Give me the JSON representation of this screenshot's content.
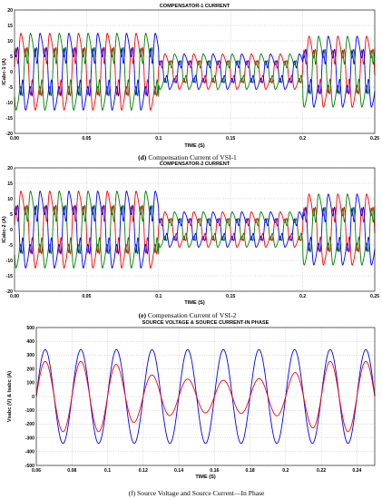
{
  "chart_data": [
    {
      "type": "line",
      "title": "COMPENSATOR-1 CURRENT",
      "xlabel": "TIME (S)",
      "ylabel": "ICabc-1 (A)",
      "xlim": [
        0.0,
        0.25
      ],
      "ylim": [
        -20,
        20
      ],
      "xticks": [
        "0.05",
        "0.1",
        "0.15",
        "0.2",
        "0.25"
      ],
      "yticks": [
        "-20",
        "-15",
        "-10",
        "-5",
        "0",
        "5",
        "10",
        "15",
        "20"
      ],
      "grid": true,
      "series": [
        {
          "color": "#ff0000",
          "phase_deg": 0
        },
        {
          "color": "#008000",
          "phase_deg": -120
        },
        {
          "color": "#0000ff",
          "phase_deg": 120
        }
      ],
      "segments": [
        {
          "x": [
            0.0,
            0.1
          ],
          "peak_amplitude": 13
        },
        {
          "x": [
            0.1,
            0.2
          ],
          "peak_amplitude": 6
        },
        {
          "x": [
            0.2,
            0.25
          ],
          "peak_amplitude": 12
        }
      ],
      "caption_letter": "(d)",
      "caption_text": " Compensation Current of VSI-1"
    },
    {
      "type": "line",
      "title": "COMPENSATOR-2 CURRENT",
      "xlabel": "TIME (S)",
      "ylabel": "ICabc-2 (A)",
      "xlim": [
        0.0,
        0.25
      ],
      "ylim": [
        -20,
        20
      ],
      "xticks": [
        "0.05",
        "0.1",
        "0.15",
        "0.2",
        "0.25"
      ],
      "yticks": [
        "-20",
        "-15",
        "-10",
        "-5",
        "0",
        "5",
        "10",
        "15",
        "20"
      ],
      "grid": true,
      "series": [
        {
          "color": "#ff0000",
          "phase_deg": 0
        },
        {
          "color": "#008000",
          "phase_deg": -120
        },
        {
          "color": "#0000ff",
          "phase_deg": 120
        }
      ],
      "segments": [
        {
          "x": [
            0.0,
            0.1
          ],
          "peak_amplitude": 13
        },
        {
          "x": [
            0.1,
            0.2
          ],
          "peak_amplitude": 6
        },
        {
          "x": [
            0.2,
            0.25
          ],
          "peak_amplitude": 12
        }
      ],
      "caption_letter": "(e)",
      "caption_text": " Compensation Current of VSI-2"
    },
    {
      "type": "line",
      "title": "SOURCE VOLTAGE & SOURCE CURRENT-IN PHASE",
      "xlabel": "TIME (S)",
      "ylabel": "Vsabc (V) & Isabc (A)",
      "xlim": [
        0.06,
        0.25
      ],
      "ylim": [
        -500,
        500
      ],
      "xticks": [
        "0.06",
        "0.08",
        "0.1",
        "0.12",
        "0.14",
        "0.16",
        "0.18",
        "0.2",
        "0.22",
        "0.24"
      ],
      "yticks": [
        "-500",
        "-400",
        "-300",
        "-200",
        "-100",
        "0",
        "100",
        "200",
        "300",
        "400",
        "500"
      ],
      "grid": true,
      "frequency_hz": 50,
      "series": [
        {
          "color": "#0000ff",
          "peak_amplitude": 340
        },
        {
          "color": "#ff0000",
          "peak_amplitude_points": {
            "x": [
              0.06,
              0.1,
              0.12,
              0.14,
              0.16,
              0.18,
              0.2,
              0.22,
              0.25
            ],
            "y": [
              255,
              255,
              165,
              130,
              115,
              125,
              145,
              255,
              255
            ]
          }
        }
      ],
      "caption_letter": "",
      "caption_text": "(f) Source Voltage and Source Current—In Phase"
    }
  ]
}
